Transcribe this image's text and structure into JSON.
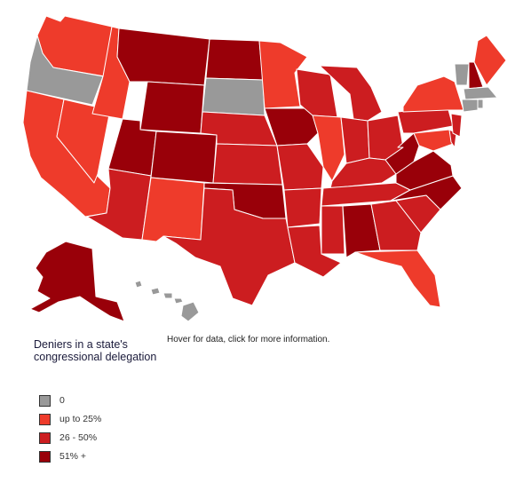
{
  "map": {
    "hint": "Hover for data, click for more information.",
    "legend_title": "Deniers in a state's congressional delegation",
    "categories": [
      {
        "key": "none",
        "label": "0",
        "color": "#999999"
      },
      {
        "key": "low",
        "label": "up to 25%",
        "color": "#ee3b2b"
      },
      {
        "key": "mid",
        "label": "26 - 50%",
        "color": "#cc1d20"
      },
      {
        "key": "high",
        "label": "51% +",
        "color": "#990009"
      }
    ]
  }
}
